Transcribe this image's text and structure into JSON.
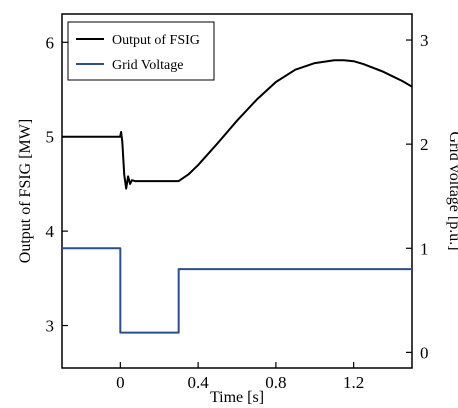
{
  "chart_data": {
    "type": "line",
    "x_label": "Time [s]",
    "y_left_label": "Output of FSIG [MW]",
    "y_right_label": "Grid voltage [p.u.]",
    "xlim": [
      -0.3,
      1.5
    ],
    "y_left_lim": [
      2.55,
      6.3
    ],
    "y_right_lim": [
      -0.15,
      3.25
    ],
    "x_ticks": [
      {
        "value": 0,
        "label": "0"
      },
      {
        "value": 0.4,
        "label": "0.4"
      },
      {
        "value": 0.8,
        "label": "0.8"
      },
      {
        "value": 1.2,
        "label": "1.2"
      }
    ],
    "y_left_ticks": [
      {
        "value": 3,
        "label": "3"
      },
      {
        "value": 4,
        "label": "4"
      },
      {
        "value": 5,
        "label": "5"
      },
      {
        "value": 6,
        "label": "6"
      }
    ],
    "y_right_ticks": [
      {
        "value": 0,
        "label": "0"
      },
      {
        "value": 1,
        "label": "1"
      },
      {
        "value": 2,
        "label": "2"
      },
      {
        "value": 3,
        "label": "3"
      }
    ],
    "legend_position": "top-left",
    "grid": false,
    "series": [
      {
        "name": "Output of FSIG",
        "axis": "left",
        "color": "#000000",
        "x": [
          -0.3,
          -0.001,
          0.004,
          0.01,
          0.02,
          0.03,
          0.04,
          0.05,
          0.06,
          0.075,
          0.1,
          0.2,
          0.3,
          0.35,
          0.4,
          0.5,
          0.6,
          0.7,
          0.8,
          0.9,
          1.0,
          1.1,
          1.15,
          1.2,
          1.25,
          1.3,
          1.35,
          1.4,
          1.45,
          1.5
        ],
        "y": [
          5.0,
          5.0,
          5.05,
          4.95,
          4.6,
          4.45,
          4.58,
          4.5,
          4.54,
          4.53,
          4.53,
          4.53,
          4.53,
          4.6,
          4.7,
          4.93,
          5.17,
          5.39,
          5.58,
          5.71,
          5.78,
          5.81,
          5.81,
          5.8,
          5.77,
          5.73,
          5.69,
          5.64,
          5.59,
          5.53
        ]
      },
      {
        "name": "Grid Voltage",
        "axis": "right",
        "color": "#2c4f8c",
        "x": [
          -0.3,
          0.0,
          0.0,
          0.3,
          0.3,
          1.5
        ],
        "y": [
          1.0,
          1.0,
          0.19,
          0.19,
          0.8,
          0.8
        ]
      }
    ]
  }
}
